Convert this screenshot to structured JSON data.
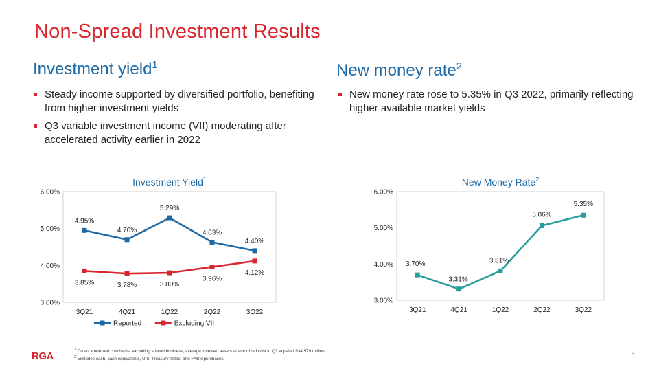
{
  "page": {
    "title": "Non-Spread Investment Results",
    "page_number": "8"
  },
  "left": {
    "heading": "Investment yield",
    "heading_sup": "1",
    "bullets": [
      "Steady income supported by diversified portfolio, benefiting from higher investment yields",
      "Q3 variable investment income (VII) moderating after accelerated activity earlier in 2022"
    ]
  },
  "right": {
    "heading": "New money rate",
    "heading_sup": "2",
    "bullets": [
      "New money rate rose to 5.35% in Q3 2022, primarily reflecting higher available market yields"
    ]
  },
  "chart_data": [
    {
      "type": "line",
      "title": "Investment  Yield",
      "title_sup": "1",
      "categories": [
        "3Q21",
        "4Q21",
        "1Q22",
        "2Q22",
        "3Q22"
      ],
      "ylim": [
        3.0,
        6.0
      ],
      "yticks": [
        "3.00%",
        "4.00%",
        "5.00%",
        "6.00%"
      ],
      "legend": "bottom",
      "series": [
        {
          "name": "Reported",
          "values": [
            4.95,
            4.7,
            5.29,
            4.63,
            4.4
          ],
          "labels": [
            "4.95%",
            "4.70%",
            "5.29%",
            "4.63%",
            "4.40%"
          ],
          "color": "#1f6aa5"
        },
        {
          "name": "Excluding VII",
          "values": [
            3.85,
            3.78,
            3.8,
            3.96,
            4.12
          ],
          "labels": [
            "3.85%",
            "3.78%",
            "3.80%",
            "3.96%",
            "4.12%"
          ],
          "color": "#d7262d"
        }
      ]
    },
    {
      "type": "line",
      "title": "New Money Rate",
      "title_sup": "2",
      "categories": [
        "3Q21",
        "4Q21",
        "1Q22",
        "2Q22",
        "3Q22"
      ],
      "ylim": [
        3.0,
        6.0
      ],
      "yticks": [
        "3.00%",
        "4.00%",
        "5.00%",
        "6.00%"
      ],
      "series": [
        {
          "values": [
            3.7,
            3.31,
            3.81,
            5.06,
            5.35
          ],
          "labels": [
            "3.70%",
            "3.31%",
            "3.81%",
            "5.06%",
            "5.35%"
          ],
          "color": "#2a9d9a"
        }
      ]
    }
  ],
  "footer": {
    "logo": "RGA",
    "note1_sup": "1",
    "note1": "On an amortized cost basis, excluding spread business; average invested assets at amortized cost in Q3 equaled $34,579 million.",
    "note2_sup": "2",
    "note2": "Excludes cash, cash equivalents,  U.S. Treasury notes, and FABN purchases."
  }
}
